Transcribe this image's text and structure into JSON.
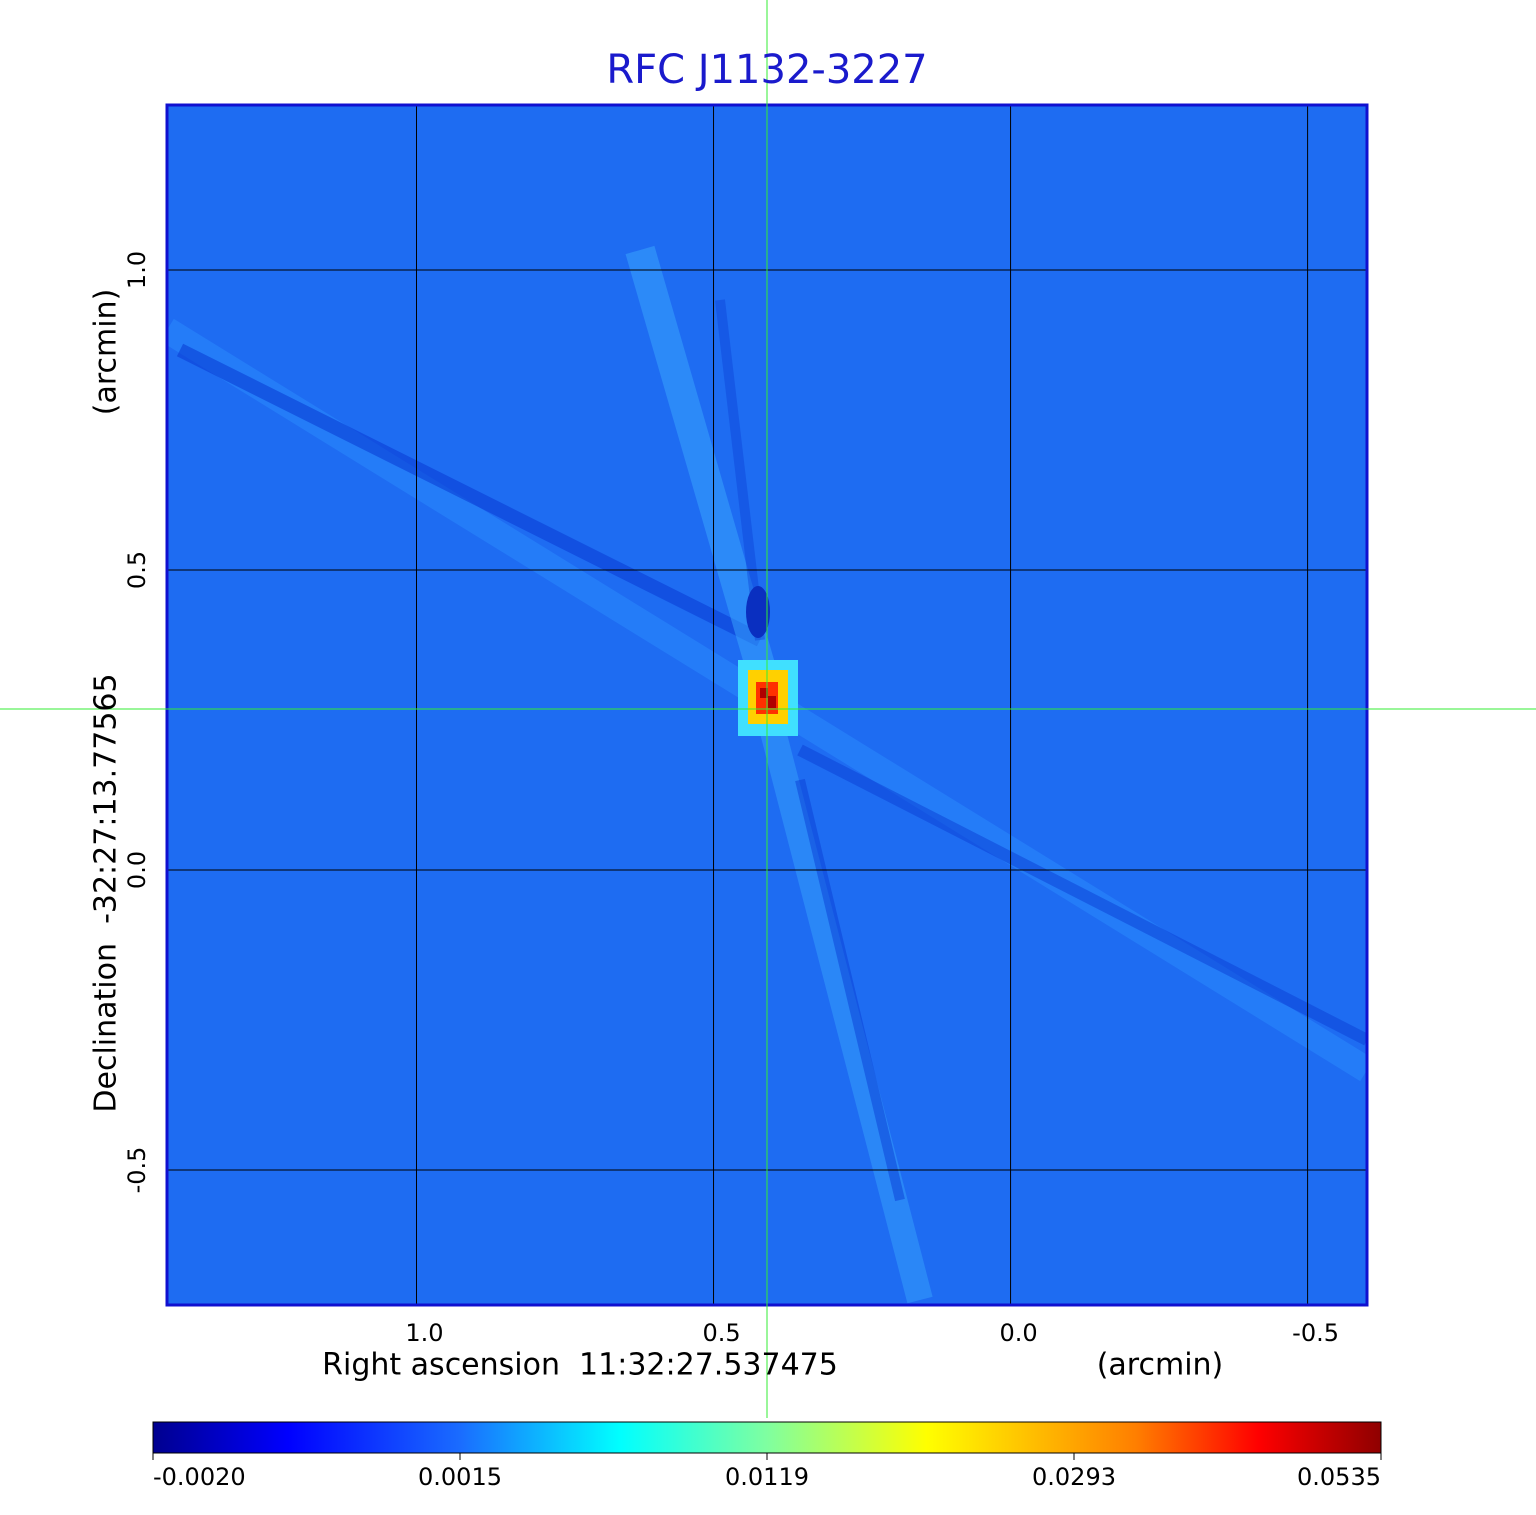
{
  "chart_data": {
    "type": "heatmap",
    "title": "RFC J1132-3227",
    "xlabel": "Right ascension  11:32:27.537475",
    "xunit": "(arcmin)",
    "ylabel": "Declination  -32:27:13.77565",
    "yunit": "(arcmin)",
    "xlim": [
      1.42,
      -0.6
    ],
    "ylim": [
      -0.725,
      1.275
    ],
    "xticks": [
      {
        "value": 1,
        "label": "1.0"
      },
      0.5,
      {
        "value": 0,
        "label": "0.0"
      },
      -0.5
    ],
    "yticks": [
      {
        "value": 1,
        "label": "1.0"
      },
      0.5,
      {
        "value": 0,
        "label": "0.0"
      },
      -0.5
    ],
    "grid": true,
    "colorbar": {
      "ticks": [
        {
          "value": -0.002,
          "label": "-0.0020"
        },
        0.0015,
        0.0119,
        0.0293,
        0.0535
      ]
    }
  }
}
